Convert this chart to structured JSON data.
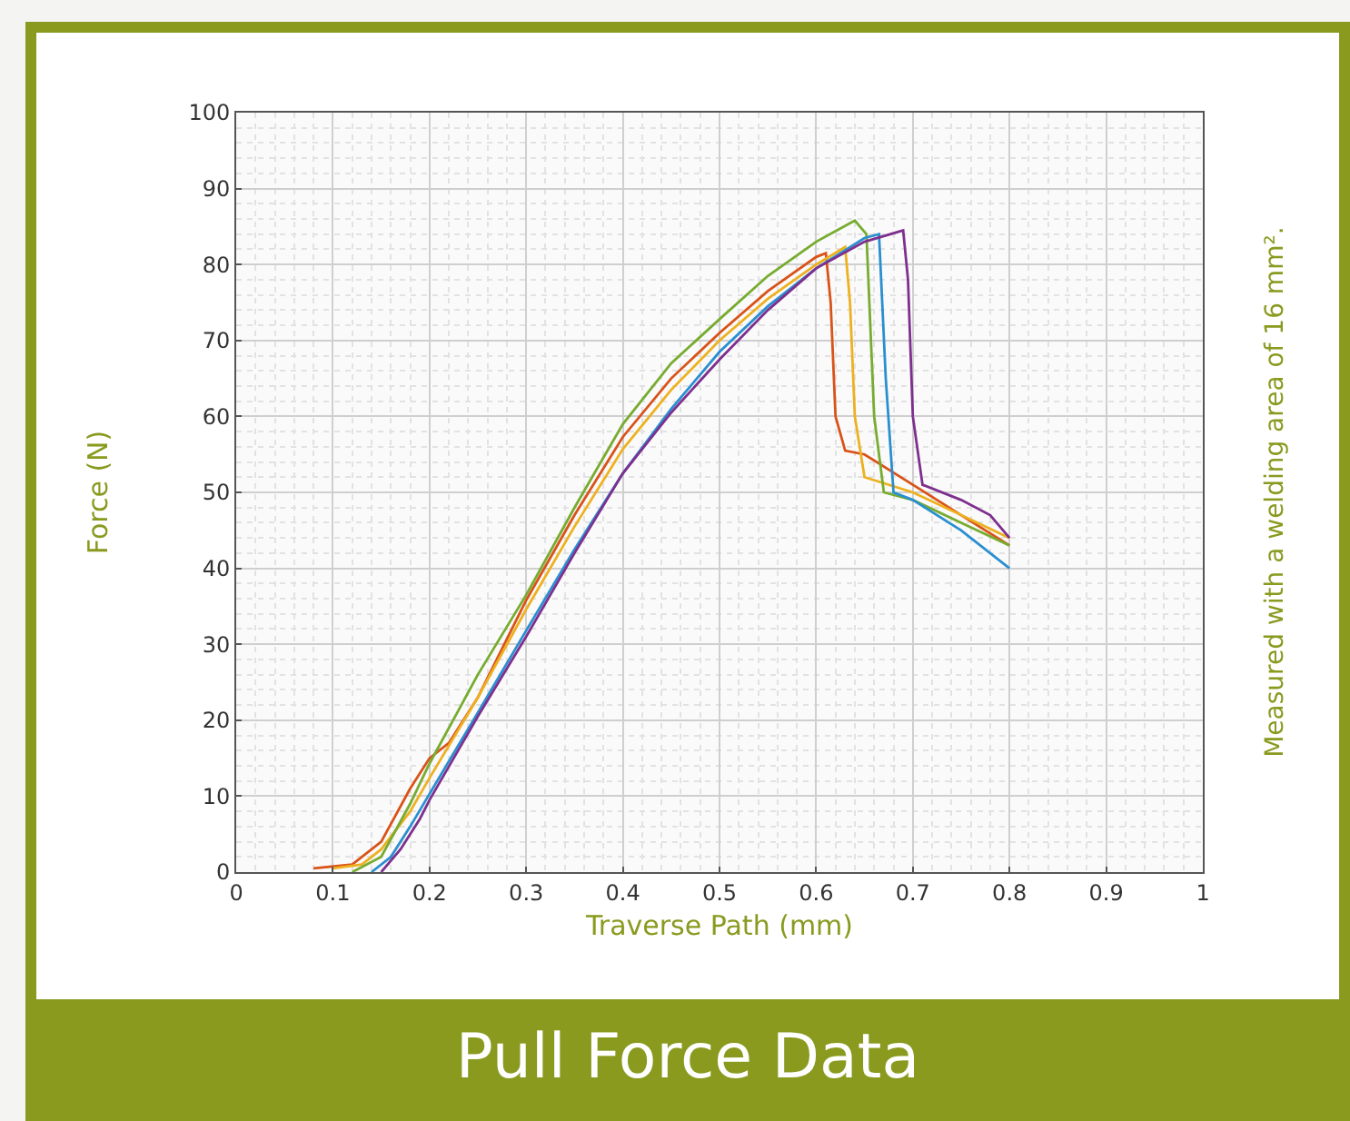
{
  "chart_data": {
    "type": "line",
    "title": "Pull Force Data",
    "xlabel": "Traverse Path (mm)",
    "ylabel": "Force (N)",
    "annotations": [
      "Measured with a welding area of 16 mm²."
    ],
    "xlim": [
      0,
      1
    ],
    "xticks": [
      0,
      0.1,
      0.2,
      0.3,
      0.4,
      0.5,
      0.6,
      0.7,
      0.8,
      0.9,
      1
    ],
    "ylim": [
      0,
      100
    ],
    "yticks": [
      0,
      10,
      20,
      30,
      40,
      50,
      60,
      70,
      80,
      90,
      100
    ],
    "grid": true,
    "marker": "none",
    "line_style": "solid",
    "series": [
      {
        "color": "#d95319",
        "x": [
          0.08,
          0.12,
          0.15,
          0.18,
          0.2,
          0.22,
          0.25,
          0.3,
          0.35,
          0.4,
          0.45,
          0.5,
          0.55,
          0.6,
          0.61,
          0.615,
          0.62,
          0.63,
          0.65,
          0.7,
          0.75,
          0.8
        ],
        "values": [
          0.5,
          1,
          4,
          11,
          15,
          17,
          23,
          35.8,
          47,
          57.3,
          65,
          71,
          76.5,
          81,
          81.5,
          75,
          60,
          55.5,
          55,
          51,
          47,
          43
        ]
      },
      {
        "color": "#edb120",
        "x": [
          0.1,
          0.13,
          0.15,
          0.18,
          0.2,
          0.25,
          0.3,
          0.35,
          0.4,
          0.45,
          0.5,
          0.55,
          0.6,
          0.63,
          0.635,
          0.64,
          0.65,
          0.7,
          0.75,
          0.8
        ],
        "values": [
          0.5,
          1,
          3,
          8,
          12.4,
          23,
          34.6,
          45.5,
          55.7,
          63.5,
          70,
          75.5,
          80,
          82.3,
          75,
          60,
          52,
          50,
          47,
          44
        ]
      },
      {
        "color": "#77ac30",
        "x": [
          0.12,
          0.15,
          0.18,
          0.2,
          0.25,
          0.3,
          0.35,
          0.4,
          0.45,
          0.5,
          0.55,
          0.6,
          0.64,
          0.652,
          0.66,
          0.67,
          0.7,
          0.75,
          0.8
        ],
        "values": [
          0,
          2,
          9,
          14.3,
          26,
          36.5,
          48,
          59,
          67,
          72.8,
          78.5,
          83,
          85.8,
          84,
          60,
          50,
          49,
          46,
          43
        ]
      },
      {
        "color": "#2a8fd0",
        "x": [
          0.14,
          0.16,
          0.18,
          0.2,
          0.25,
          0.3,
          0.35,
          0.4,
          0.45,
          0.5,
          0.55,
          0.6,
          0.65,
          0.665,
          0.672,
          0.68,
          0.7,
          0.75,
          0.8
        ],
        "values": [
          0,
          2,
          6,
          10.3,
          21,
          31.8,
          42.5,
          52.5,
          61,
          68.5,
          74.5,
          79.5,
          83.5,
          84,
          65,
          50,
          49,
          45,
          40
        ]
      },
      {
        "color": "#7e2f8e",
        "x": [
          0.15,
          0.17,
          0.19,
          0.2,
          0.25,
          0.3,
          0.35,
          0.4,
          0.45,
          0.5,
          0.55,
          0.6,
          0.65,
          0.69,
          0.695,
          0.7,
          0.71,
          0.75,
          0.78,
          0.8
        ],
        "values": [
          0,
          3,
          7,
          9.5,
          20.5,
          31,
          42,
          52.5,
          60.5,
          67.5,
          74,
          79.5,
          83,
          84.5,
          78,
          60,
          51,
          49,
          47,
          44
        ]
      }
    ]
  }
}
